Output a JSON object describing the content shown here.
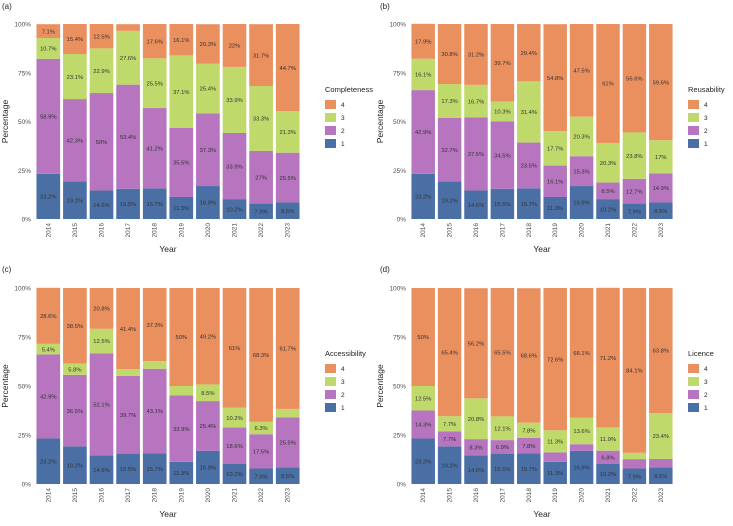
{
  "colors": {
    "1": "#4a6fa5",
    "2": "#b675be",
    "3": "#bfd96b",
    "4": "#ea8f5e"
  },
  "chart_data": [
    {
      "type": "bar",
      "stacked": true,
      "panel_label": "(a)",
      "xlabel": "Year",
      "ylabel": "Percentage",
      "legend_title": "Completeness",
      "legend_entries": [
        "4",
        "3",
        "2",
        "1"
      ],
      "categories": [
        "2014",
        "2015",
        "2016",
        "2017",
        "2018",
        "2019",
        "2020",
        "2021",
        "2022",
        "2023"
      ],
      "yticks": [
        "0%",
        "25%",
        "50%",
        "75%",
        "100%"
      ],
      "ylim": [
        0,
        100
      ],
      "series": [
        {
          "name": "1",
          "values": [
            23.2,
            19.2,
            14.6,
            15.5,
            15.7,
            11.3,
            16.9,
            10.2,
            7.9,
            8.5
          ],
          "labels": [
            "23.2%",
            "19.2%",
            "14.6%",
            "15.5%",
            "15.7%",
            "11.3%",
            "16.9%",
            "10.2%",
            "7.9%",
            "8.5%"
          ]
        },
        {
          "name": "2",
          "values": [
            58.9,
            42.3,
            50,
            53.4,
            41.2,
            35.5,
            37.3,
            33.9,
            27,
            25.5
          ],
          "labels": [
            "58.9%",
            "42.3%",
            "50%",
            "53.4%",
            "41.2%",
            "35.5%",
            "37.3%",
            "33.9%",
            "27%",
            "25.5%"
          ]
        },
        {
          "name": "3",
          "values": [
            10.7,
            23.1,
            22.9,
            27.6,
            25.5,
            37.1,
            25.4,
            33.9,
            33.3,
            21.3
          ],
          "labels": [
            "10.7%",
            "23.1%",
            "22.9%",
            "27.6%",
            "25.5%",
            "37.1%",
            "25.4%",
            "33.9%",
            "33.3%",
            "21.3%"
          ]
        },
        {
          "name": "4",
          "values": [
            7.1,
            15.4,
            12.5,
            3.4,
            17.6,
            16.1,
            20.3,
            22,
            31.7,
            44.7
          ],
          "labels": [
            "7.1%",
            "15.4%",
            "12.5%",
            "",
            "17.6%",
            "16.1%",
            "20.3%",
            "22%",
            "31.7%",
            "44.7%"
          ]
        }
      ]
    },
    {
      "type": "bar",
      "stacked": true,
      "panel_label": "(b)",
      "xlabel": "Year",
      "ylabel": "Percentage",
      "legend_title": "Reusability",
      "legend_entries": [
        "4",
        "3",
        "2",
        "1"
      ],
      "categories": [
        "2014",
        "2015",
        "2016",
        "2017",
        "2018",
        "2019",
        "2020",
        "2021",
        "2022",
        "2023"
      ],
      "yticks": [
        "0%",
        "25%",
        "50%",
        "75%",
        "100%"
      ],
      "ylim": [
        0,
        100
      ],
      "series": [
        {
          "name": "1",
          "values": [
            23.2,
            19.2,
            14.6,
            15.5,
            15.7,
            11.3,
            16.9,
            10.2,
            7.9,
            8.5
          ],
          "labels": [
            "23.2%",
            "19.2%",
            "14.6%",
            "15.5%",
            "15.7%",
            "11.3%",
            "16.9%",
            "10.2%",
            "7.9%",
            "8.5%"
          ]
        },
        {
          "name": "2",
          "values": [
            42.9,
            32.7,
            37.5,
            34.5,
            23.5,
            16.1,
            15.3,
            8.5,
            12.7,
            14.9
          ],
          "labels": [
            "42.9%",
            "32.7%",
            "37.5%",
            "34.5%",
            "23.5%",
            "16.1%",
            "15.3%",
            "8.5%",
            "12.7%",
            "14.9%"
          ]
        },
        {
          "name": "3",
          "values": [
            16.1,
            17.3,
            16.7,
            10.3,
            31.4,
            17.7,
            20.3,
            20.3,
            23.8,
            17
          ],
          "labels": [
            "16.1%",
            "17.3%",
            "16.7%",
            "10.3%",
            "31.4%",
            "17.7%",
            "20.3%",
            "20.3%",
            "23.8%",
            "17%"
          ]
        },
        {
          "name": "4",
          "values": [
            17.9,
            30.8,
            31.2,
            39.7,
            29.4,
            54.8,
            47.5,
            61,
            55.6,
            59.6
          ],
          "labels": [
            "17.9%",
            "30.8%",
            "31.2%",
            "39.7%",
            "29.4%",
            "54.8%",
            "47.5%",
            "61%",
            "55.6%",
            "59.6%"
          ]
        }
      ]
    },
    {
      "type": "bar",
      "stacked": true,
      "panel_label": "(c)",
      "xlabel": "Year",
      "ylabel": "Percentage",
      "legend_title": "Accessibility",
      "legend_entries": [
        "4",
        "3",
        "2",
        "1"
      ],
      "categories": [
        "2014",
        "2015",
        "2016",
        "2017",
        "2018",
        "2019",
        "2020",
        "2021",
        "2022",
        "2023"
      ],
      "yticks": [
        "0%",
        "25%",
        "50%",
        "75%",
        "100%"
      ],
      "ylim": [
        0,
        100
      ],
      "series": [
        {
          "name": "1",
          "values": [
            23.2,
            19.2,
            14.6,
            15.5,
            15.7,
            11.3,
            16.9,
            10.2,
            7.9,
            8.5
          ],
          "labels": [
            "23.2%",
            "19.2%",
            "14.6%",
            "15.5%",
            "15.7%",
            "11.3%",
            "16.9%",
            "10.2%",
            "7.9%",
            "8.5%"
          ]
        },
        {
          "name": "2",
          "values": [
            42.9,
            36.5,
            52.1,
            39.7,
            43.1,
            33.9,
            25.4,
            18.6,
            17.5,
            25.5
          ],
          "labels": [
            "42.9%",
            "36.5%",
            "52.1%",
            "39.7%",
            "43.1%",
            "33.9%",
            "25.4%",
            "18.6%",
            "17.5%",
            "25.5%"
          ]
        },
        {
          "name": "3",
          "values": [
            5.4,
            5.8,
            12.5,
            3.4,
            3.9,
            4.8,
            8.5,
            10.2,
            6.3,
            4.3
          ],
          "labels": [
            "5.4%",
            "5.8%",
            "12.5%",
            "",
            "",
            "",
            "8.5%",
            "10.2%",
            "6.3%",
            ""
          ]
        },
        {
          "name": "4",
          "values": [
            28.6,
            38.5,
            20.8,
            41.4,
            37.3,
            50,
            49.2,
            61,
            68.3,
            61.7
          ],
          "labels": [
            "28.6%",
            "38.5%",
            "20.8%",
            "41.4%",
            "37.3%",
            "50%",
            "49.2%",
            "61%",
            "68.3%",
            "61.7%"
          ]
        }
      ]
    },
    {
      "type": "bar",
      "stacked": true,
      "panel_label": "(d)",
      "xlabel": "Year",
      "ylabel": "Percentage",
      "legend_title": "Licence",
      "legend_entries": [
        "4",
        "3",
        "2",
        "1"
      ],
      "categories": [
        "2014",
        "2015",
        "2016",
        "2017",
        "2018",
        "2019",
        "2020",
        "2021",
        "2022",
        "2023"
      ],
      "yticks": [
        "0%",
        "25%",
        "50%",
        "75%",
        "100%"
      ],
      "ylim": [
        0,
        100
      ],
      "series": [
        {
          "name": "1",
          "values": [
            23.2,
            19.2,
            14.6,
            15.5,
            15.7,
            11.3,
            16.9,
            10.2,
            7.9,
            8.5
          ],
          "labels": [
            "23.2%",
            "19.2%",
            "14.6%",
            "15.5%",
            "15.7%",
            "11.3%",
            "16.9%",
            "10.2%",
            "7.9%",
            "8.5%"
          ]
        },
        {
          "name": "2",
          "values": [
            14.3,
            7.7,
            8.3,
            6.9,
            7.8,
            4.8,
            3.4,
            6.8,
            4.8,
            4.3
          ],
          "labels": [
            "14.3%",
            "7.7%",
            "8.3%",
            "6.9%",
            "7.8%",
            "",
            "",
            "6.8%",
            "",
            ""
          ]
        },
        {
          "name": "3",
          "values": [
            12.5,
            7.7,
            20.8,
            12.1,
            7.8,
            11.3,
            13.6,
            11.9,
            3.2,
            23.4
          ],
          "labels": [
            "12.5%",
            "7.7%",
            "20.8%",
            "12.1%",
            "7.8%",
            "11.3%",
            "13.6%",
            "11.9%",
            "",
            "23.4%"
          ]
        },
        {
          "name": "4",
          "values": [
            50,
            65.4,
            56.2,
            65.5,
            68.6,
            72.6,
            66.1,
            71.2,
            84.1,
            63.8
          ],
          "labels": [
            "50%",
            "65.4%",
            "56.2%",
            "65.5%",
            "68.6%",
            "72.6%",
            "66.1%",
            "71.2%",
            "84.1%",
            "63.8%"
          ]
        }
      ]
    }
  ]
}
